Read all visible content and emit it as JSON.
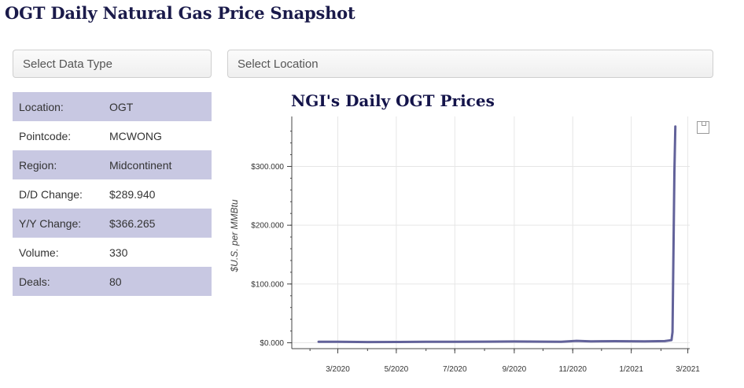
{
  "page": {
    "title": "OGT Daily Natural Gas Price Snapshot"
  },
  "selectors": {
    "data_type": "Select Data Type",
    "location": "Select Location"
  },
  "info": [
    {
      "label": "Location:",
      "value": "OGT"
    },
    {
      "label": "Pointcode:",
      "value": "MCWONG"
    },
    {
      "label": "Region:",
      "value": "Midcontinent"
    },
    {
      "label": "D/D Change:",
      "value": "$289.940"
    },
    {
      "label": "Y/Y Change:",
      "value": "$366.265"
    },
    {
      "label": "Volume:",
      "value": "330"
    },
    {
      "label": "Deals:",
      "value": "80"
    }
  ],
  "colors": {
    "row_shade": "#c8c8e2",
    "line": "#62629a",
    "title": "#14144a"
  },
  "toolbar": {
    "save_icon": "save-icon"
  },
  "chart_data": {
    "type": "line",
    "title": "NGI's Daily OGT Prices",
    "ylabel": "$U.S. per MMBtu",
    "xlabel": "",
    "ylim": [
      -10,
      385
    ],
    "xlim": [
      "2020-01-13",
      "2021-03-03"
    ],
    "yticks": [
      0,
      100,
      200,
      300
    ],
    "ytick_labels": [
      "$0.000",
      "$100.000",
      "$200.000",
      "$300.000"
    ],
    "xticks": [
      "2020-03-01",
      "2020-05-01",
      "2020-07-01",
      "2020-09-01",
      "2020-11-01",
      "2021-01-01",
      "2021-03-01"
    ],
    "xtick_labels": [
      "3/2020",
      "5/2020",
      "7/2020",
      "9/2020",
      "11/2020",
      "1/2021",
      "3/2021"
    ],
    "grid": true,
    "series": [
      {
        "x": [
          "2020-02-10",
          "2020-03-01",
          "2020-04-01",
          "2020-05-01",
          "2020-06-01",
          "2020-07-01",
          "2020-08-01",
          "2020-09-01",
          "2020-10-01",
          "2020-10-20",
          "2020-11-05",
          "2020-11-20",
          "2020-12-15",
          "2021-01-15",
          "2021-02-05",
          "2021-02-12",
          "2021-02-13",
          "2021-02-15",
          "2021-02-16"
        ],
        "values": [
          1.8,
          1.6,
          1.2,
          1.4,
          1.6,
          1.7,
          1.9,
          2.2,
          1.9,
          1.7,
          3.2,
          2.5,
          2.7,
          2.4,
          2.8,
          4.5,
          18,
          290,
          368
        ]
      }
    ]
  }
}
